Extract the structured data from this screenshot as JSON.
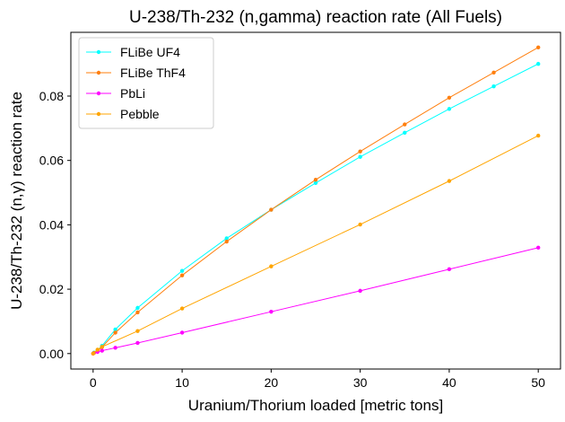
{
  "chart_data": {
    "type": "line",
    "title": "U-238/Th-232 (n,gamma) reaction rate (All Fuels)",
    "xlabel": "Uranium/Thorium loaded [metric tons]",
    "ylabel": "U-238/Th-232 (n,γ) reaction rate",
    "xlim": [
      -2.5,
      52.5
    ],
    "ylim": [
      -0.0048,
      0.0998
    ],
    "x_ticks": [
      0,
      10,
      20,
      30,
      40,
      50
    ],
    "y_ticks": [
      0.0,
      0.02,
      0.04,
      0.06,
      0.08
    ],
    "x_tick_labels": [
      "0",
      "10",
      "20",
      "30",
      "40",
      "50"
    ],
    "y_tick_labels": [
      "0.00",
      "0.02",
      "0.04",
      "0.06",
      "0.08"
    ],
    "grid": false,
    "legend_position": "top-left",
    "series": [
      {
        "name": "FLiBe UF4",
        "color": "#00ffff",
        "x": [
          0.1,
          0.5,
          1,
          2.5,
          5,
          10,
          15,
          20,
          25,
          30,
          35,
          40,
          45,
          50
        ],
        "y": [
          0.0003,
          0.0011,
          0.0024,
          0.0075,
          0.0142,
          0.0257,
          0.0358,
          0.0447,
          0.053,
          0.0611,
          0.0686,
          0.076,
          0.083,
          0.09
        ]
      },
      {
        "name": "FLiBe ThF4",
        "color": "#ff7f0e",
        "x": [
          0.1,
          0.5,
          1,
          2.5,
          5,
          10,
          15,
          20,
          25,
          30,
          35,
          40,
          45,
          50
        ],
        "y": [
          0.0002,
          0.0008,
          0.002,
          0.0065,
          0.0128,
          0.0243,
          0.0348,
          0.0447,
          0.054,
          0.0628,
          0.0712,
          0.0795,
          0.0873,
          0.0951
        ]
      },
      {
        "name": "PbLi",
        "color": "#ff00ff",
        "x": [
          0,
          0.5,
          1,
          2.5,
          5,
          10,
          20,
          30,
          40,
          50
        ],
        "y": [
          0.0,
          0.0005,
          0.0009,
          0.0018,
          0.0033,
          0.0065,
          0.013,
          0.0195,
          0.0262,
          0.0329
        ]
      },
      {
        "name": "Pebble",
        "color": "#ffa500",
        "x": [
          0,
          0.5,
          1,
          5,
          10,
          20,
          30,
          40,
          50
        ],
        "y": [
          0.0,
          0.0012,
          0.0021,
          0.007,
          0.014,
          0.0271,
          0.0401,
          0.0536,
          0.0677
        ]
      }
    ]
  }
}
